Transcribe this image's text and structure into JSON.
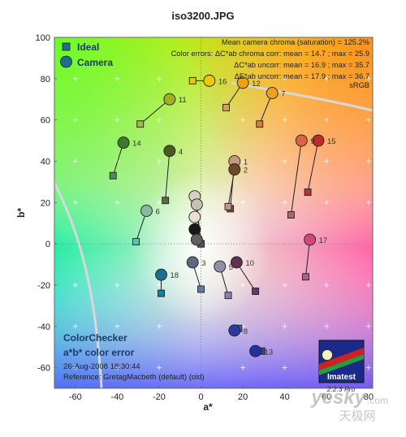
{
  "chart_data": {
    "type": "scatter",
    "title": "iso3200.JPG",
    "xlabel": "a*",
    "ylabel": "b*",
    "xlim": [
      -70,
      82
    ],
    "ylim": [
      -70,
      100
    ],
    "x_ticks": [
      -60,
      -40,
      -20,
      0,
      20,
      40,
      60,
      80
    ],
    "y_ticks": [
      -60,
      -40,
      -20,
      0,
      20,
      40,
      60,
      80,
      100
    ],
    "legend": [
      {
        "label": "Ideal",
        "marker": "square",
        "color": "#1f6f8b"
      },
      {
        "label": "Camera",
        "marker": "circle",
        "color": "#1f6f8b"
      }
    ],
    "stats": [
      "Mean camera chroma (saturation) = 125.2%",
      "Color errors:  ΔC*ab chroma corr:  mean = 14.7 ;  max = 25.9",
      "ΔC*ab uncorr:  mean = 16.9 ;  max = 35.7",
      "ΔE*ab uncorr:  mean = 17.9 ;  max = 36.7"
    ],
    "gamut_label": "sRGB",
    "info": [
      "ColorChecker",
      "a*b* color error",
      "26-Aug-2008 18:30:44",
      "Reference: GretagMacbeth (default) (old)"
    ],
    "badge": {
      "text": "Imatest",
      "version": "2.2.3 Pro"
    },
    "watermark": {
      "main": "yesky",
      "suffix": ".com",
      "sub": "天极网"
    },
    "points": [
      {
        "id": "1",
        "ideal": [
          14,
          17
        ],
        "camera": [
          16,
          40
        ],
        "ideal_color": "#735244",
        "camera_color": "#c49a7a"
      },
      {
        "id": "2",
        "ideal": [
          13,
          18
        ],
        "camera": [
          16,
          36
        ],
        "ideal_color": "#c29682",
        "camera_color": "#6b4a2a"
      },
      {
        "id": "3",
        "ideal": [
          0,
          -22
        ],
        "camera": [
          -4,
          -9
        ],
        "ideal_color": "#627a9d",
        "camera_color": "#5a6a80"
      },
      {
        "id": "4",
        "ideal": [
          -17,
          21
        ],
        "camera": [
          -15,
          45
        ],
        "ideal_color": "#576c43",
        "camera_color": "#4a5a22"
      },
      {
        "id": "5",
        "ideal": [
          13,
          -25
        ],
        "camera": [
          9,
          -11
        ],
        "ideal_color": "#8580b1",
        "camera_color": "#8f8fa8"
      },
      {
        "id": "6",
        "ideal": [
          -31,
          1
        ],
        "camera": [
          -26,
          16
        ],
        "ideal_color": "#67bdaa",
        "camera_color": "#88b8a0"
      },
      {
        "id": "7",
        "ideal": [
          28,
          58
        ],
        "camera": [
          34,
          73
        ],
        "ideal_color": "#d67e2c",
        "camera_color": "#f0a020"
      },
      {
        "id": "8",
        "ideal": [
          18,
          -41
        ],
        "camera": [
          16,
          -42
        ],
        "ideal_color": "#505ba6",
        "camera_color": "#2a3aa0"
      },
      {
        "id": "9",
        "ideal": [
          43,
          14
        ],
        "camera": [
          48,
          50
        ],
        "ideal_color": "#c15a63",
        "camera_color": "#e06040"
      },
      {
        "id": "10",
        "ideal": [
          26,
          -23
        ],
        "camera": [
          17,
          -9
        ],
        "ideal_color": "#5e3c6c",
        "camera_color": "#603050"
      },
      {
        "id": "11",
        "ideal": [
          -29,
          58
        ],
        "camera": [
          -15,
          70
        ],
        "ideal_color": "#9dbc40",
        "camera_color": "#a0b020"
      },
      {
        "id": "12",
        "ideal": [
          12,
          66
        ],
        "camera": [
          20,
          78
        ],
        "ideal_color": "#e0a32e",
        "camera_color": "#f0a010"
      },
      {
        "id": "13",
        "ideal": [
          29,
          -52
        ],
        "camera": [
          26,
          -52
        ],
        "ideal_color": "#383d96",
        "camera_color": "#2030a0"
      },
      {
        "id": "14",
        "ideal": [
          -42,
          33
        ],
        "camera": [
          -37,
          49
        ],
        "ideal_color": "#469449",
        "camera_color": "#3a7a2a"
      },
      {
        "id": "15",
        "ideal": [
          51,
          25
        ],
        "camera": [
          56,
          50
        ],
        "ideal_color": "#af363c",
        "camera_color": "#c82828"
      },
      {
        "id": "16",
        "ideal": [
          -4,
          79
        ],
        "camera": [
          4,
          79
        ],
        "ideal_color": "#e7c71f",
        "camera_color": "#f0c800"
      },
      {
        "id": "17",
        "ideal": [
          50,
          -16
        ],
        "camera": [
          52,
          2
        ],
        "ideal_color": "#bb5695",
        "camera_color": "#d04878"
      },
      {
        "id": "18",
        "ideal": [
          -19,
          -24
        ],
        "camera": [
          -19,
          -15
        ],
        "ideal_color": "#0885a1",
        "camera_color": "#1a7090"
      },
      {
        "id": "",
        "ideal": [
          0,
          0
        ],
        "camera": [
          -3,
          23
        ],
        "ideal_color": "#f3f3f2",
        "camera_color": "#d8d0c0"
      },
      {
        "id": "",
        "ideal": [
          0,
          0
        ],
        "camera": [
          -2,
          19
        ],
        "ideal_color": "#c8c8c8",
        "camera_color": "#c8c0b0"
      },
      {
        "id": "",
        "ideal": [
          0,
          0
        ],
        "camera": [
          -3,
          13
        ],
        "ideal_color": "#a0a0a0",
        "camera_color": "#e8e0d0"
      },
      {
        "id": "",
        "ideal": [
          0,
          0
        ],
        "camera": [
          -3,
          7
        ],
        "ideal_color": "#7a7a79",
        "camera_color": "#181818"
      },
      {
        "id": "",
        "ideal": [
          0,
          0
        ],
        "camera": [
          -2,
          2
        ],
        "ideal_color": "#555555",
        "camera_color": "#606060"
      }
    ]
  }
}
